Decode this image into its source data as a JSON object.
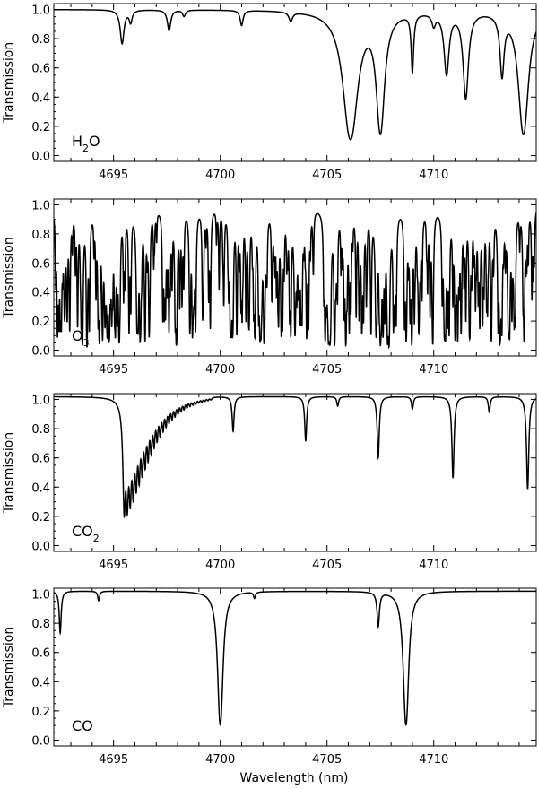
{
  "figure": {
    "xlabel": "Wavelength (nm)"
  },
  "chart_data": [
    {
      "type": "line",
      "series": [
        {
          "molecule": "H2O",
          "label_main": "H",
          "label_sub": "2",
          "label_tail": "O",
          "continuum": 1.0,
          "lines": [
            {
              "x": 4695.4,
              "depth": 0.12,
              "w": 0.1
            },
            {
              "x": 4695.8,
              "depth": 0.04,
              "w": 0.08
            },
            {
              "x": 4697.6,
              "depth": 0.07,
              "w": 0.09
            },
            {
              "x": 4698.3,
              "depth": 0.02,
              "w": 0.08
            },
            {
              "x": 4701.0,
              "depth": 0.05,
              "w": 0.08
            },
            {
              "x": 4703.3,
              "depth": 0.03,
              "w": 0.1
            },
            {
              "x": 4706.1,
              "depth": 1.0,
              "w": 0.25
            },
            {
              "x": 4707.5,
              "depth": 0.85,
              "w": 0.15
            },
            {
              "x": 4709.0,
              "depth": 0.24,
              "w": 0.06
            },
            {
              "x": 4710.0,
              "depth": 0.04,
              "w": 0.1
            },
            {
              "x": 4710.6,
              "depth": 0.26,
              "w": 0.12
            },
            {
              "x": 4711.5,
              "depth": 0.42,
              "w": 0.12
            },
            {
              "x": 4713.2,
              "depth": 0.26,
              "w": 0.1
            },
            {
              "x": 4714.2,
              "depth": 0.88,
              "w": 0.18
            }
          ]
        }
      ],
      "xlim": [
        4692.2,
        4714.8
      ],
      "ylim": [
        -0.04,
        1.04
      ],
      "xticks": [
        4695,
        4700,
        4705,
        4710
      ],
      "yticks": [
        0.0,
        0.2,
        0.4,
        0.6,
        0.8,
        1.0
      ],
      "ylabel": "Transmission"
    },
    {
      "type": "line",
      "series": [
        {
          "molecule": "O3",
          "label_main": "O",
          "label_sub": "3",
          "label_tail": "",
          "continuum": 1.0,
          "forest": {
            "seed": 7,
            "count": 300,
            "min_depth": 0.1,
            "max_depth": 1.0,
            "w": 0.02
          },
          "lines": [
            {
              "x": 4692.7,
              "depth": 0.55,
              "w": 0.03
            },
            {
              "x": 4694.6,
              "depth": 0.72,
              "w": 0.03
            },
            {
              "x": 4696.1,
              "depth": 0.85,
              "w": 0.03
            },
            {
              "x": 4701.9,
              "depth": 0.95,
              "w": 0.03
            },
            {
              "x": 4703.5,
              "depth": 1.0,
              "w": 0.03
            },
            {
              "x": 4705.1,
              "depth": 1.0,
              "w": 0.03
            },
            {
              "x": 4707.3,
              "depth": 1.0,
              "w": 0.03
            },
            {
              "x": 4707.9,
              "depth": 1.0,
              "w": 0.03
            },
            {
              "x": 4709.3,
              "depth": 0.95,
              "w": 0.03
            },
            {
              "x": 4710.5,
              "depth": 1.0,
              "w": 0.03
            },
            {
              "x": 4713.5,
              "depth": 1.0,
              "w": 0.03
            }
          ]
        }
      ],
      "xlim": [
        4692.2,
        4714.8
      ],
      "ylim": [
        -0.04,
        1.04
      ],
      "xticks": [
        4695,
        4700,
        4705,
        4710
      ],
      "yticks": [
        0.0,
        0.2,
        0.4,
        0.6,
        0.8,
        1.0
      ],
      "ylabel": "Transmission"
    },
    {
      "type": "line",
      "series": [
        {
          "molecule": "CO2",
          "label_main": "CO",
          "label_sub": "2",
          "label_tail": "",
          "continuum": 1.02,
          "band": {
            "x0": 4695.5,
            "depth": 0.66,
            "spacing": 0.14,
            "decay": 0.9,
            "w": 0.05
          },
          "lines": [
            {
              "x": 4700.6,
              "depth": 0.12,
              "w": 0.05
            },
            {
              "x": 4704.0,
              "depth": 0.16,
              "w": 0.05
            },
            {
              "x": 4705.5,
              "depth": 0.03,
              "w": 0.05
            },
            {
              "x": 4707.4,
              "depth": 0.24,
              "w": 0.05
            },
            {
              "x": 4709.0,
              "depth": 0.04,
              "w": 0.05
            },
            {
              "x": 4710.9,
              "depth": 0.36,
              "w": 0.05
            },
            {
              "x": 4712.6,
              "depth": 0.05,
              "w": 0.05
            },
            {
              "x": 4714.4,
              "depth": 0.44,
              "w": 0.05
            }
          ]
        }
      ],
      "xlim": [
        4692.2,
        4714.8
      ],
      "ylim": [
        -0.04,
        1.04
      ],
      "xticks": [
        4695,
        4700,
        4705,
        4710
      ],
      "yticks": [
        0.0,
        0.2,
        0.4,
        0.6,
        0.8,
        1.0
      ],
      "ylabel": "Transmission"
    },
    {
      "type": "line",
      "series": [
        {
          "molecule": "CO",
          "label_main": "CO",
          "label_sub": "",
          "label_tail": "",
          "continuum": 1.02,
          "lines": [
            {
              "x": 4692.5,
              "depth": 0.15,
              "w": 0.05
            },
            {
              "x": 4694.3,
              "depth": 0.03,
              "w": 0.05
            },
            {
              "x": 4700.0,
              "depth": 1.04,
              "w": 0.09
            },
            {
              "x": 4701.6,
              "depth": 0.02,
              "w": 0.05
            },
            {
              "x": 4707.4,
              "depth": 0.12,
              "w": 0.06
            },
            {
              "x": 4708.7,
              "depth": 1.04,
              "w": 0.09
            }
          ]
        }
      ],
      "xlim": [
        4692.2,
        4714.8
      ],
      "ylim": [
        -0.04,
        1.04
      ],
      "xticks": [
        4695,
        4700,
        4705,
        4710
      ],
      "yticks": [
        0.0,
        0.2,
        0.4,
        0.6,
        0.8,
        1.0
      ],
      "ylabel": "Transmission"
    }
  ]
}
